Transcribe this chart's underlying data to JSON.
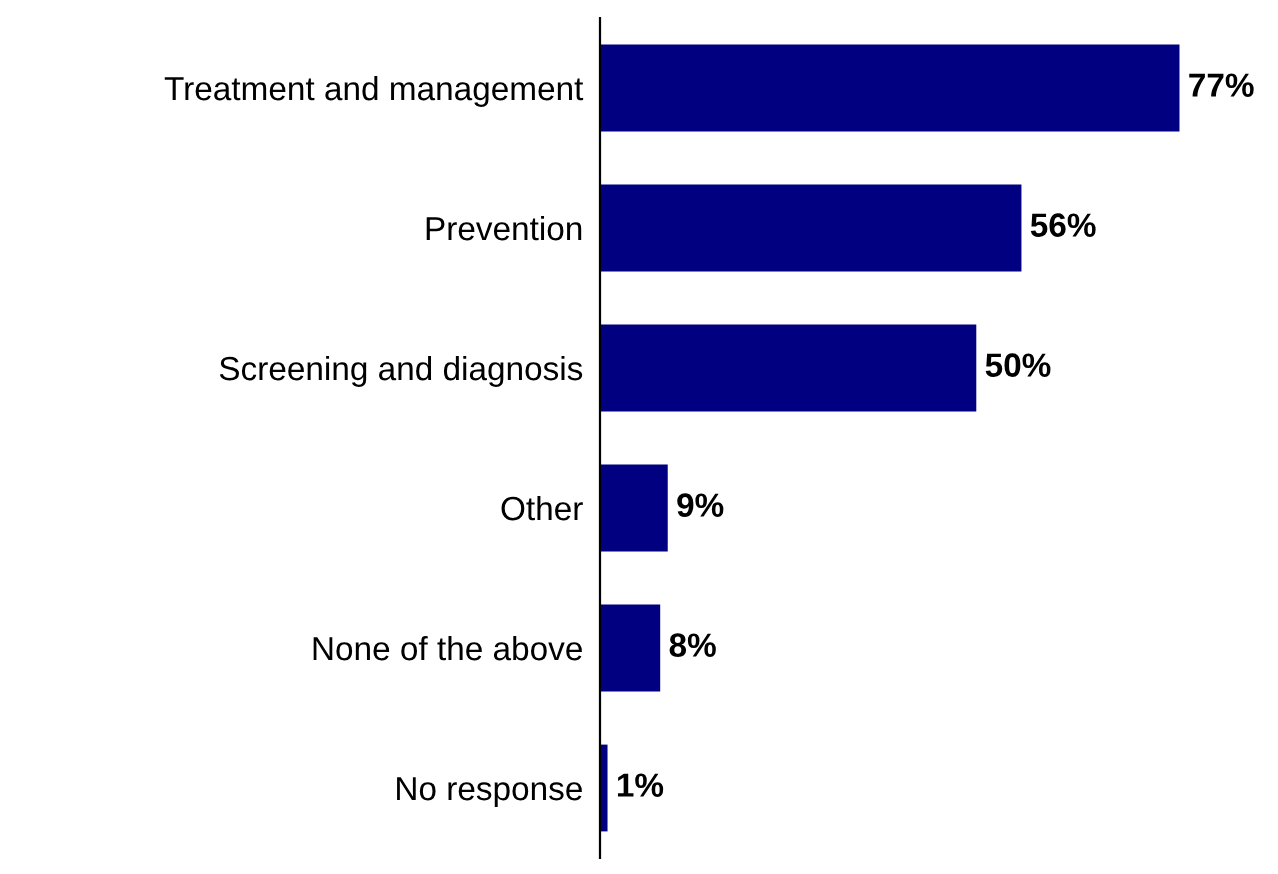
{
  "chart_data": {
    "type": "bar",
    "orientation": "horizontal",
    "categories": [
      "Treatment and management",
      "Prevention",
      "Screening and diagnosis",
      "Other",
      "None of the above",
      "No response"
    ],
    "values": [
      77,
      56,
      50,
      9,
      8,
      1
    ],
    "value_labels": [
      "77%",
      "56%",
      "50%",
      "9%",
      "8%",
      "1%"
    ],
    "color": "#000080",
    "grid": false,
    "legend": false
  }
}
